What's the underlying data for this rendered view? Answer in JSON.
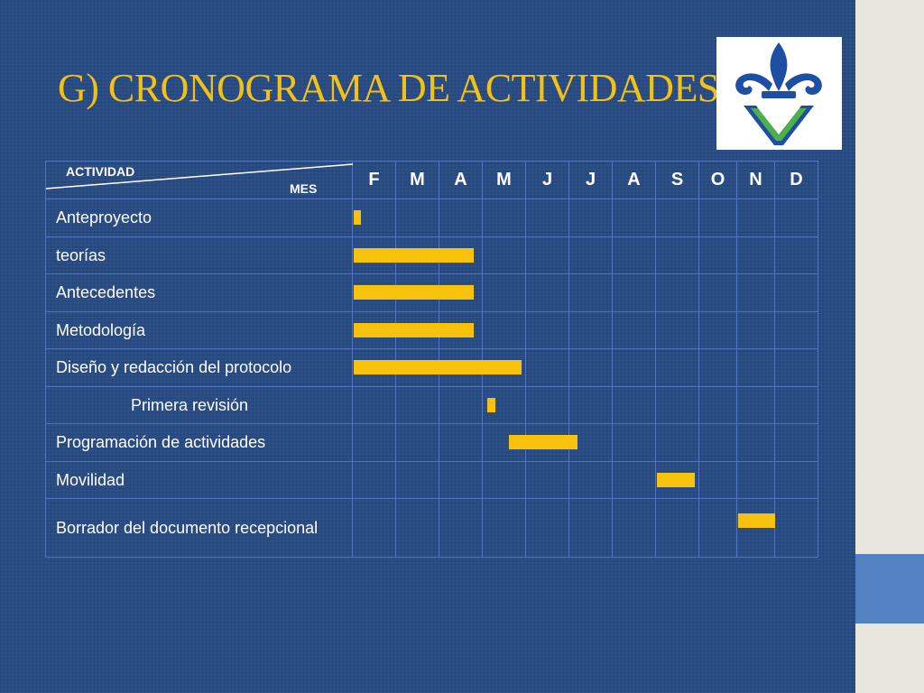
{
  "slide": {
    "title": "G)   CRONOGRAMA DE ACTIVIDADES",
    "logo_icon": "uv-fleur-de-lis-logo",
    "colors": {
      "background": "#284b84",
      "title": "#f2c117",
      "bar": "#f8c10c",
      "grid": "#4f76bd",
      "logo_blue": "#1f4fa3",
      "logo_green": "#4db04a"
    }
  },
  "table": {
    "header_activity": "ACTIVIDAD",
    "header_month": "MES",
    "months": [
      "F",
      "M",
      "A",
      "M",
      "J",
      "J",
      "A",
      "S",
      "O",
      "N",
      "D"
    ],
    "activities": [
      "Anteproyecto",
      "teorías",
      "Antecedentes",
      "Metodología",
      "Diseño y redacción del protocolo",
      "Primera revisión",
      "Programación de actividades",
      "Movilidad",
      "Borrador del documento recepcional"
    ]
  },
  "chart_data": {
    "type": "gantt",
    "title": "G)   CRONOGRAMA DE ACTIVIDADES",
    "columns": [
      "F",
      "M",
      "A",
      "M",
      "J",
      "J",
      "A",
      "S",
      "O",
      "N",
      "D"
    ],
    "tasks": [
      {
        "name": "Anteproyecto",
        "start_month": 0.0,
        "end_month": 0.2
      },
      {
        "name": "teorías",
        "start_month": 0.0,
        "end_month": 2.8
      },
      {
        "name": "Antecedentes",
        "start_month": 0.0,
        "end_month": 2.8
      },
      {
        "name": "Metodología",
        "start_month": 0.0,
        "end_month": 2.8
      },
      {
        "name": "Diseño y redacción del protocolo",
        "start_month": 0.0,
        "end_month": 3.9
      },
      {
        "name": "Primera revisión",
        "start_month": 3.1,
        "end_month": 3.3
      },
      {
        "name": "Programación de actividades",
        "start_month": 3.6,
        "end_month": 5.2
      },
      {
        "name": "Movilidad",
        "start_month": 7.0,
        "end_month": 7.9
      },
      {
        "name": "Borrador del documento recepcional",
        "start_month": 9.0,
        "end_month": 10.0
      }
    ]
  }
}
